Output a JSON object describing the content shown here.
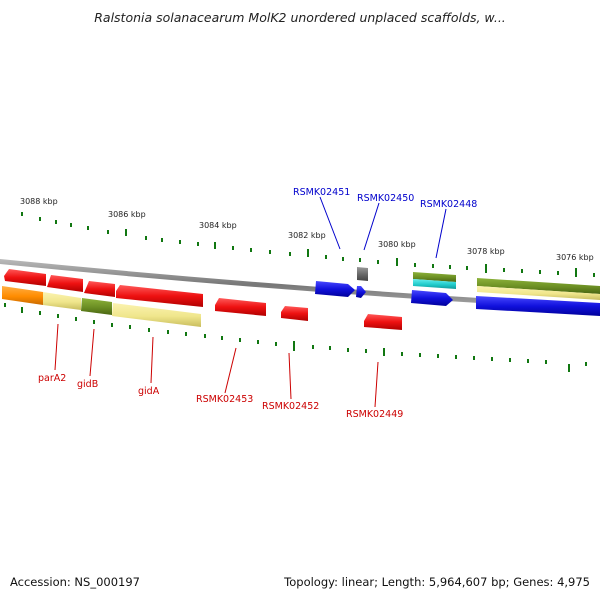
{
  "title": "Ralstonia solanacearum MolK2 unordered unplaced scaffolds, w...",
  "footer": {
    "accession": "Accession: NS_000197",
    "summary": "Topology: linear; Length: 5,964,607 bp; Genes: 4,975"
  },
  "colors": {
    "red_gene": "#ee1111",
    "blue_gene": "#1111dd",
    "olive_gene": "#6b8e23",
    "khaki_gene": "#f0e68c",
    "orange_gene": "#ff8c00",
    "cyan_gene": "#22cccc",
    "gray_gene": "#666666",
    "tick": "#117711",
    "backbone": "#888888",
    "label_red": "#cc0000",
    "label_blue": "#0000cc"
  },
  "scale_labels": [
    "3088 kbp",
    "3086 kbp",
    "3084 kbp",
    "3082 kbp",
    "3080 kbp",
    "3078 kbp",
    "3076 kbp"
  ],
  "gene_labels": {
    "above": [
      "RSMK02451",
      "RSMK02450",
      "RSMK02448"
    ],
    "below": [
      "parA2",
      "gidB",
      "gidA",
      "RSMK02453",
      "RSMK02452",
      "RSMK02449"
    ]
  }
}
